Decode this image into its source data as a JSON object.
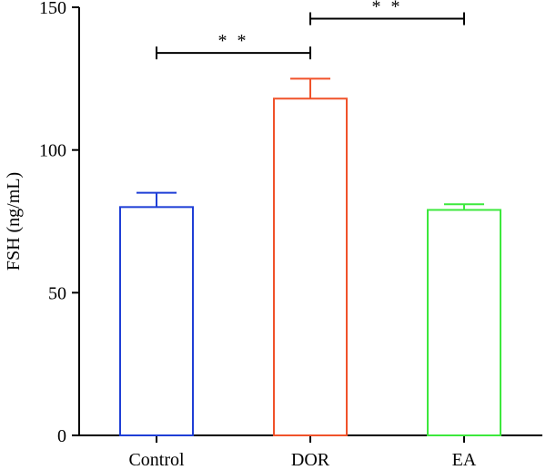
{
  "chart_data": {
    "type": "bar",
    "categories": [
      "Control",
      "DOR",
      "EA"
    ],
    "values": [
      80,
      118,
      79
    ],
    "error_upper": [
      85,
      125,
      81
    ],
    "colors": [
      "#1f3fd6",
      "#f0522a",
      "#3de83d"
    ],
    "ylabel": "FSH (ng/mL)",
    "xlabel": "",
    "ylim": [
      0,
      150
    ],
    "yticks": [
      0,
      50,
      100,
      150
    ],
    "grid": false,
    "significance": [
      {
        "from": "Control",
        "to": "DOR",
        "label": "* *",
        "y": 134
      },
      {
        "from": "DOR",
        "to": "EA",
        "label": "* *",
        "y": 146
      }
    ]
  }
}
